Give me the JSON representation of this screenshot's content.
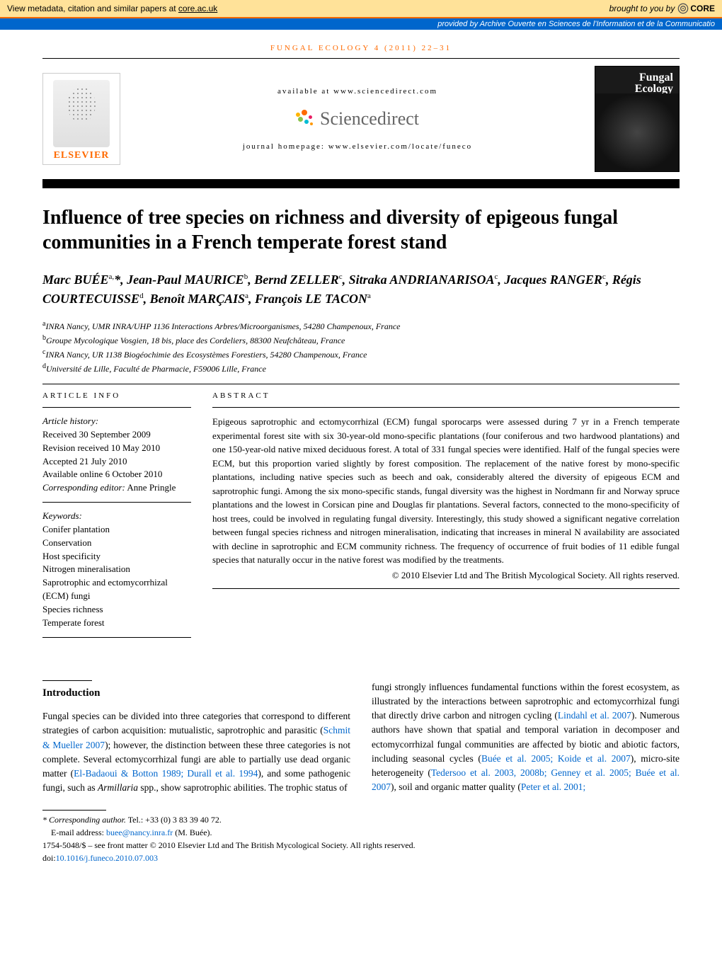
{
  "core_banner": {
    "left_prefix": "View metadata, citation and similar papers at ",
    "left_link": "core.ac.uk",
    "right_prefix": "brought to you by ",
    "brand": "CORE"
  },
  "archive_banner": {
    "prefix": "provided by ",
    "source": "Archive Ouverte en Sciences de l'Information et de la Communicatio"
  },
  "journal_line": "FUNGAL ECOLOGY 4 (2011) 22–31",
  "header": {
    "available": "available at www.sciencedirect.com",
    "sciencedirect": "Sciencedirect",
    "homepage": "journal homepage: www.elsevier.com/locate/funeco",
    "elsevier": "ELSEVIER",
    "cover_title_1": "Fungal",
    "cover_title_2": "Ecology"
  },
  "title": "Influence of tree species on richness and diversity of epigeous fungal communities in a French temperate forest stand",
  "authors_html": "Marc BUÉE<sup>a,</sup>*, Jean-Paul MAURICE<sup>b</sup>, Bernd ZELLER<sup>c</sup>, Sitraka ANDRIANARISOA<sup>c</sup>, Jacques RANGER<sup>c</sup>, Régis COURTECUISSE<sup>d</sup>, Benoît MARÇAIS<sup>a</sup>, François LE TACON<sup>a</sup>",
  "affiliations": [
    {
      "sup": "a",
      "text": "INRA Nancy, UMR INRA/UHP 1136 Interactions Arbres/Microorganismes, 54280 Champenoux, France"
    },
    {
      "sup": "b",
      "text": "Groupe Mycologique Vosgien, 18 bis, place des Cordeliers, 88300 Neufchâteau, France"
    },
    {
      "sup": "c",
      "text": "INRA Nancy, UR 1138 Biogéochimie des Ecosystèmes Forestiers, 54280 Champenoux, France"
    },
    {
      "sup": "d",
      "text": "Université de Lille, Faculté de Pharmacie, F59006 Lille, France"
    }
  ],
  "article_info": {
    "heading": "ARTICLE INFO",
    "history_label": "Article history:",
    "received": "Received 30 September 2009",
    "revision": "Revision received 10 May 2010",
    "accepted": "Accepted 21 July 2010",
    "online": "Available online 6 October 2010",
    "editor_label": "Corresponding editor:",
    "editor": " Anne Pringle",
    "keywords_label": "Keywords:",
    "keywords": [
      "Conifer plantation",
      "Conservation",
      "Host specificity",
      "Nitrogen mineralisation",
      "Saprotrophic and ectomycorrhizal (ECM) fungi",
      "Species richness",
      "Temperate forest"
    ]
  },
  "abstract": {
    "heading": "ABSTRACT",
    "text": "Epigeous saprotrophic and ectomycorrhizal (ECM) fungal sporocarps were assessed during 7 yr in a French temperate experimental forest site with six 30-year-old mono-specific plantations (four coniferous and two hardwood plantations) and one 150-year-old native mixed deciduous forest. A total of 331 fungal species were identified. Half of the fungal species were ECM, but this proportion varied slightly by forest composition. The replacement of the native forest by mono-specific plantations, including native species such as beech and oak, considerably altered the diversity of epigeous ECM and saprotrophic fungi. Among the six mono-specific stands, fungal diversity was the highest in Nordmann fir and Norway spruce plantations and the lowest in Corsican pine and Douglas fir plantations. Several factors, connected to the mono-specificity of host trees, could be involved in regulating fungal diversity. Interestingly, this study showed a significant negative correlation between fungal species richness and nitrogen mineralisation, indicating that increases in mineral N availability are associated with decline in saprotrophic and ECM community richness. The frequency of occurrence of fruit bodies of 11 edible fungal species that naturally occur in the native forest was modified by the treatments.",
    "copyright": "© 2010 Elsevier Ltd and The British Mycological Society. All rights reserved."
  },
  "intro": {
    "heading": "Introduction",
    "col1_pre": "Fungal species can be divided into three categories that correspond to different strategies of carbon acquisition: mutualistic, saprotrophic and parasitic (",
    "col1_cite1": "Schmit & Mueller 2007",
    "col1_mid1": "); however, the distinction between these three categories is not complete. Several ectomycorrhizal fungi are able to partially use dead organic matter (",
    "col1_cite2": "El-Badaoui & Botton 1989; Durall et al. 1994",
    "col1_mid2": "), and some pathogenic fungi, such as ",
    "col1_ital": "Armillaria",
    "col1_end": " spp., show saprotrophic abilities. The trophic status of",
    "col2_pre": "fungi strongly influences fundamental functions within the forest ecosystem, as illustrated by the interactions between saprotrophic and ectomycorrhizal fungi that directly drive carbon and nitrogen cycling (",
    "col2_cite1": "Lindahl et al. 2007",
    "col2_mid1": "). Numerous authors have shown that spatial and temporal variation in decomposer and ectomycorrhizal fungal communities are affected by biotic and abiotic factors, including seasonal cycles (",
    "col2_cite2": "Buée et al. 2005; Koide et al. 2007",
    "col2_mid2": "), micro-site heterogeneity (",
    "col2_cite3": "Tedersoo et al. 2003, 2008b; Genney et al. 2005; Buée et al. 2007",
    "col2_mid3": "), soil and organic matter quality (",
    "col2_cite4": "Peter et al. 2001;"
  },
  "footnotes": {
    "corr_label": "* Corresponding author.",
    "corr_tel": " Tel.: +33 (0) 3 83 39 40 72.",
    "email_label": "E-mail address: ",
    "email": "buee@nancy.inra.fr",
    "email_suffix": " (M. Buée).",
    "issn_line_pre": "1754-5048/$ – see front matter © 2010 Elsevier Ltd and The British Mycological Society. All rights reserved.",
    "doi_label": "doi:",
    "doi": "10.1016/j.funeco.2010.07.003"
  },
  "colors": {
    "banner_bg": "#ffe299",
    "banner_border": "#ff6a00",
    "archive_bg": "#0066cc",
    "link": "#0066cc",
    "accent": "#ff6a00"
  }
}
